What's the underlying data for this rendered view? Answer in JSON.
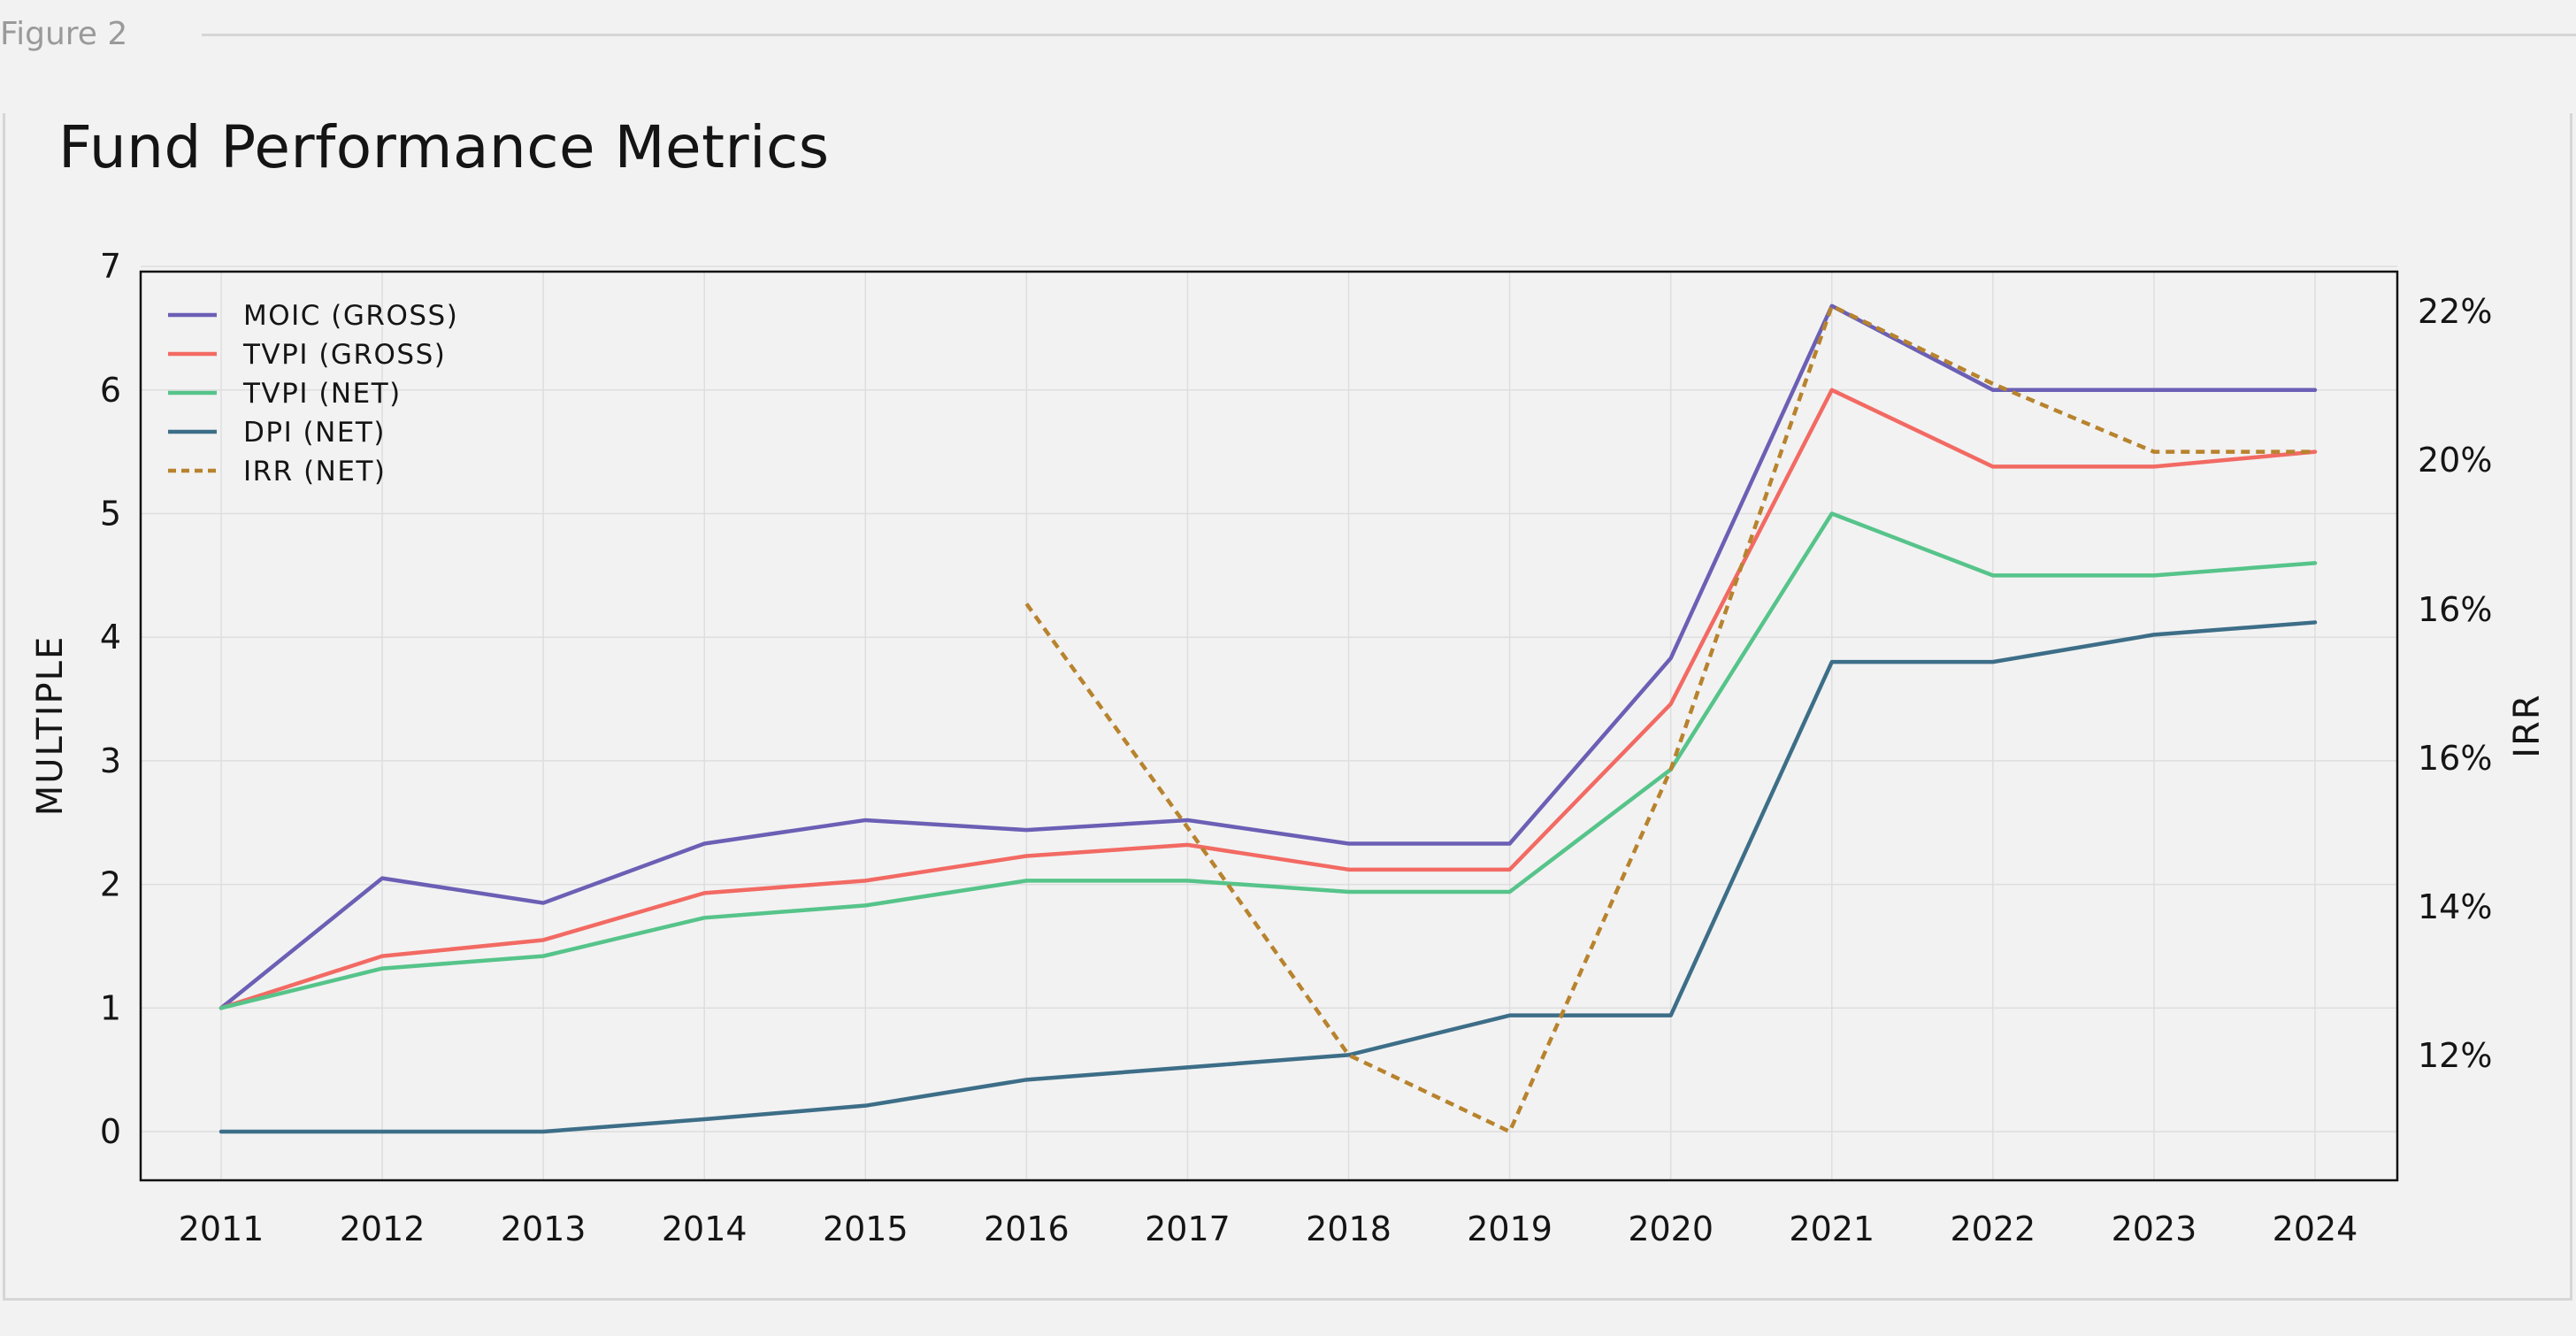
{
  "figure_label": "Figure 2",
  "chart_data": {
    "type": "line",
    "title": "Fund Performance Metrics",
    "x": [
      "2011",
      "2012",
      "2013",
      "2014",
      "2015",
      "2016",
      "2017",
      "2018",
      "2019",
      "2020",
      "2021",
      "2022",
      "2023",
      "2024"
    ],
    "ylabel": "MULTIPLE",
    "y2label": "IRR",
    "ylim": [
      -0.4,
      7
    ],
    "y_ticks": [
      "0",
      "1",
      "2",
      "3",
      "4",
      "5",
      "6",
      "7"
    ],
    "y2_ticks": [
      "22%",
      "20%",
      "16%",
      "16%",
      "14%",
      "12%"
    ],
    "grid": true,
    "legend_position": "top-left",
    "series": [
      {
        "name": "MOIC (GROSS)",
        "axis": "left",
        "color": "#6b5fb5",
        "dash": "solid",
        "values": [
          1.0,
          2.05,
          1.85,
          2.33,
          2.52,
          2.44,
          2.52,
          2.33,
          2.33,
          3.83,
          6.68,
          6.0,
          6.0,
          6.0
        ]
      },
      {
        "name": "TVPI (GROSS)",
        "axis": "left",
        "color": "#f26a63",
        "dash": "solid",
        "values": [
          1.0,
          1.42,
          1.55,
          1.93,
          2.03,
          2.23,
          2.32,
          2.12,
          2.12,
          3.46,
          6.0,
          5.38,
          5.38,
          5.5
        ]
      },
      {
        "name": "TVPI (NET)",
        "axis": "left",
        "color": "#56c48a",
        "dash": "solid",
        "values": [
          1.0,
          1.32,
          1.42,
          1.73,
          1.83,
          2.03,
          2.03,
          1.94,
          1.94,
          2.93,
          5.0,
          4.5,
          4.5,
          4.6
        ]
      },
      {
        "name": "DPI (NET)",
        "axis": "left",
        "color": "#3d6e88",
        "dash": "solid",
        "values": [
          0.0,
          0.0,
          0.0,
          0.1,
          0.21,
          0.42,
          0.52,
          0.62,
          0.94,
          0.94,
          3.8,
          3.8,
          4.02,
          4.12
        ]
      },
      {
        "name": "IRR (NET)",
        "axis": "right",
        "color": "#b8832e",
        "dash": "dotted",
        "values": [
          null,
          null,
          null,
          null,
          null,
          4.27,
          2.46,
          0.62,
          0.0,
          2.93,
          6.68,
          6.05,
          5.5,
          5.5
        ]
      }
    ]
  }
}
